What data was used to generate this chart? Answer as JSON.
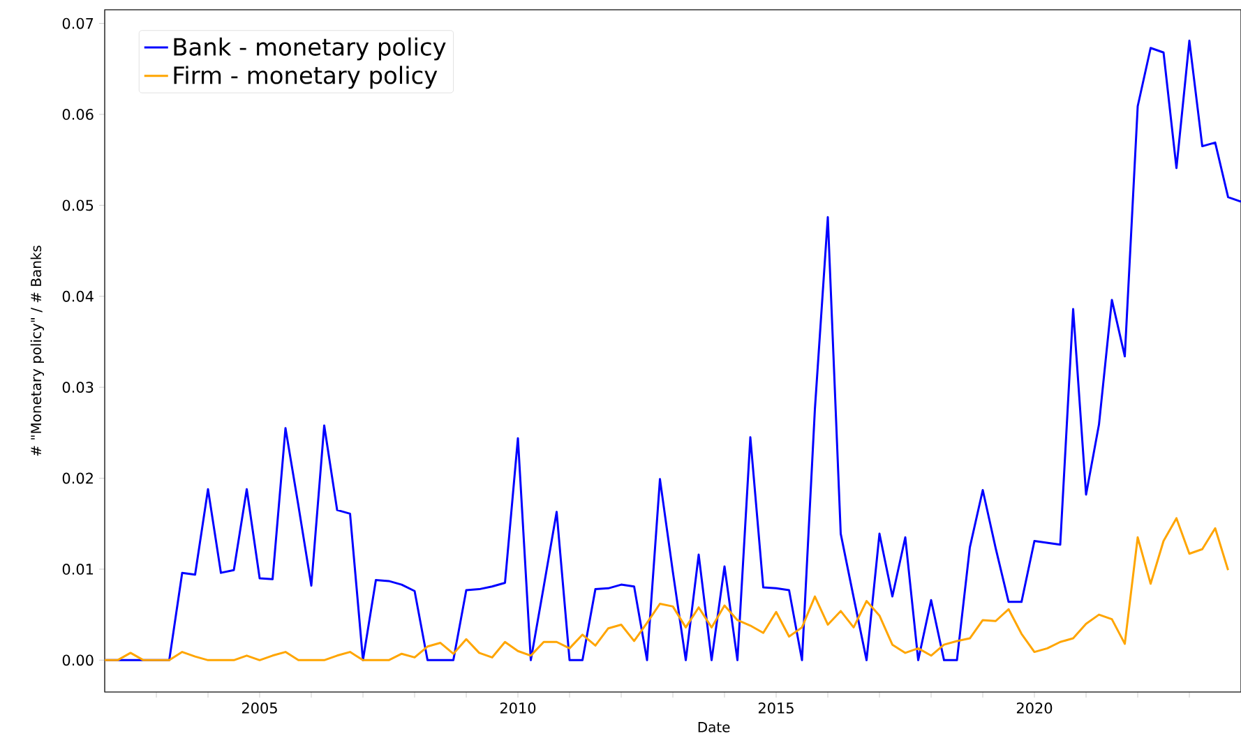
{
  "chart_data": {
    "type": "line",
    "xlabel": "Date",
    "ylabel": "# \"Monetary policy\" / # Banks",
    "x": [
      "2002-01",
      "2002-04",
      "2002-07",
      "2002-10",
      "2003-01",
      "2003-04",
      "2003-07",
      "2003-10",
      "2004-01",
      "2004-04",
      "2004-07",
      "2004-10",
      "2005-01",
      "2005-04",
      "2005-07",
      "2005-10",
      "2006-01",
      "2006-04",
      "2006-07",
      "2006-10",
      "2007-01",
      "2007-04",
      "2007-07",
      "2007-10",
      "2008-01",
      "2008-04",
      "2008-07",
      "2008-10",
      "2009-01",
      "2009-04",
      "2009-07",
      "2009-10",
      "2010-01",
      "2010-04",
      "2010-07",
      "2010-10",
      "2011-01",
      "2011-04",
      "2011-07",
      "2011-10",
      "2012-01",
      "2012-04",
      "2012-07",
      "2012-10",
      "2013-01",
      "2013-04",
      "2013-07",
      "2013-10",
      "2014-01",
      "2014-04",
      "2014-07",
      "2014-10",
      "2015-01",
      "2015-04",
      "2015-07",
      "2015-10",
      "2016-01",
      "2016-04",
      "2016-07",
      "2016-10",
      "2017-01",
      "2017-04",
      "2017-07",
      "2017-10",
      "2018-01",
      "2018-04",
      "2018-07",
      "2018-10",
      "2019-01",
      "2019-04",
      "2019-07",
      "2019-10",
      "2020-01",
      "2020-04",
      "2020-07",
      "2020-10",
      "2021-01",
      "2021-04",
      "2021-07",
      "2021-10",
      "2022-01",
      "2022-04",
      "2022-07",
      "2022-10",
      "2023-01",
      "2023-04",
      "2023-07",
      "2023-10",
      "2024-01"
    ],
    "series": [
      {
        "name": "Bank - monetary policy",
        "color": "#0000ff",
        "values": [
          0,
          0,
          0,
          0,
          0,
          0,
          0.0096,
          0.0094,
          0.0188,
          0.0096,
          0.0099,
          0.0188,
          0.009,
          0.0089,
          0.0255,
          0.017,
          0.0082,
          0.0258,
          0.0165,
          0.0161,
          0,
          0.0088,
          0.0087,
          0.0083,
          0.0076,
          0,
          0,
          0,
          0.0077,
          0.0078,
          0.0081,
          0.0085,
          0.0244,
          0,
          0.0081,
          0.0163,
          0,
          0,
          0.0078,
          0.0079,
          0.0083,
          0.0081,
          0,
          0.0199,
          0.0097,
          0,
          0.0116,
          0,
          0.0103,
          0,
          0.0245,
          0.008,
          0.0079,
          0.0077,
          0,
          0.0276,
          0.0487,
          0.0139,
          0.0069,
          0,
          0.0139,
          0.007,
          0.0135,
          0,
          0.0066,
          0,
          0,
          0.0124,
          0.0187,
          0.0123,
          0.0064,
          0.0064,
          0.0131,
          0.0129,
          0.0127,
          0.0386,
          0.0182,
          0.0259,
          0.0396,
          0.0334,
          0.0609,
          0.0673,
          0.0668,
          0.0541,
          0.0681,
          0.0565,
          0.0569,
          0.0509,
          0.0504
        ]
      },
      {
        "name": "Firm - monetary policy",
        "color": "#ffa500",
        "values": [
          0,
          0,
          0.0008,
          0,
          0,
          0,
          0.0009,
          0.0004,
          0,
          0,
          0,
          0.0005,
          0,
          0.0005,
          0.0009,
          0,
          0,
          0,
          0.0005,
          0.0009,
          0,
          0,
          0,
          0.0007,
          0.0003,
          0.0015,
          0.0019,
          0.0007,
          0.0023,
          0.0008,
          0.0003,
          0.002,
          0.001,
          0.0005,
          0.002,
          0.002,
          0.0013,
          0.0028,
          0.0016,
          0.0035,
          0.0039,
          0.0021,
          0.0041,
          0.0062,
          0.0059,
          0.0036,
          0.0058,
          0.0036,
          0.006,
          0.0044,
          0.0038,
          0.003,
          0.0053,
          0.0026,
          0.0036,
          0.007,
          0.0039,
          0.0054,
          0.0036,
          0.0065,
          0.0049,
          0.0017,
          0.0008,
          0.0013,
          0.0005,
          0.0017,
          0.0021,
          0.0024,
          0.0044,
          0.0043,
          0.0056,
          0.0029,
          0.0009,
          0.0013,
          0.002,
          0.0024,
          0.004,
          0.005,
          0.0045,
          0.0018,
          0.0135,
          0.0084,
          0.0131,
          0.0156,
          0.0117,
          0.0122,
          0.0145,
          0.0099,
          null
        ]
      }
    ],
    "xlim": [
      "2002-01",
      "2024-01"
    ],
    "xticks": [
      {
        "value": "2003",
        "label": null
      },
      {
        "value": "2004",
        "label": null
      },
      "2005",
      {
        "value": "2006",
        "label": null
      },
      {
        "value": "2007",
        "label": null
      },
      {
        "value": "2008",
        "label": null
      },
      {
        "value": "2009",
        "label": null
      },
      "2010",
      {
        "value": "2011",
        "label": null
      },
      {
        "value": "2012",
        "label": null
      },
      {
        "value": "2013",
        "label": null
      },
      {
        "value": "2014",
        "label": null
      },
      "2015",
      {
        "value": "2016",
        "label": null
      },
      {
        "value": "2017",
        "label": null
      },
      {
        "value": "2018",
        "label": null
      },
      {
        "value": "2019",
        "label": null
      },
      "2020",
      {
        "value": "2021",
        "label": null
      },
      {
        "value": "2022",
        "label": null
      },
      {
        "value": "2023",
        "label": null
      }
    ],
    "ylim": [
      -0.0035,
      0.0715
    ],
    "yticks": [
      {
        "value": 0,
        "label": "0.00"
      },
      {
        "value": 0.01,
        "label": "0.01"
      },
      {
        "value": 0.02,
        "label": "0.02"
      },
      {
        "value": 0.03,
        "label": "0.03"
      },
      {
        "value": 0.04,
        "label": "0.04"
      },
      {
        "value": 0.05,
        "label": "0.05"
      },
      {
        "value": 0.06,
        "label": "0.06"
      },
      {
        "value": 0.07,
        "label": "0.07"
      }
    ],
    "legend": "top left",
    "grid": false
  }
}
